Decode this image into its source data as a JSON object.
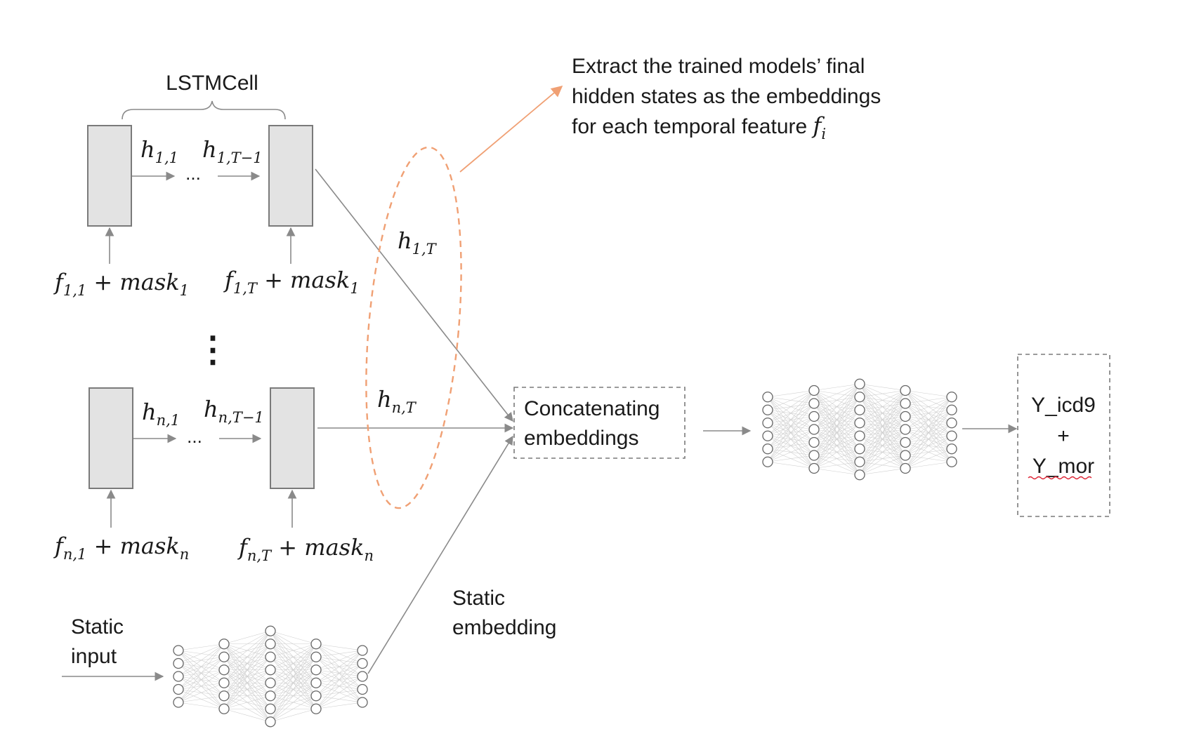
{
  "lstm_label": "LSTMCell",
  "callout": {
    "line1": "Extract the trained models’ final",
    "line2": "hidden states as the embeddings",
    "line3_text": "for each temporal feature ",
    "line3_f": "f",
    "line3_sub": "i"
  },
  "row1": {
    "h_first": {
      "base": "h",
      "sub": "1,1"
    },
    "h_mid": {
      "base": "h",
      "sub": "1,T−1"
    },
    "ellipsis": "...",
    "h_last": {
      "base": "h",
      "sub": "1,T"
    },
    "in_first": {
      "f": "f",
      "fsub": "1,1",
      "op": " + ",
      "mask": "mask",
      "msub": "1"
    },
    "in_last": {
      "f": "f",
      "fsub": "1,T",
      "op": " + ",
      "mask": "mask",
      "msub": "1"
    }
  },
  "vertical_dots": "⋮",
  "rowN": {
    "h_first": {
      "base": "h",
      "sub": "n,1"
    },
    "h_mid": {
      "base": "h",
      "sub": "n,T−1"
    },
    "ellipsis": "...",
    "h_last": {
      "base": "h",
      "sub": "n,T"
    },
    "in_first": {
      "f": "f",
      "fsub": "n,1",
      "op": " + ",
      "mask": "mask",
      "msub": "n"
    },
    "in_last": {
      "f": "f",
      "fsub": "n,T",
      "op": " + ",
      "mask": "mask",
      "msub": "n"
    }
  },
  "concat_box": {
    "line1": "Concatenating",
    "line2": "embeddings"
  },
  "output_box": {
    "line1": "Y_icd9",
    "line2": "+",
    "line3": "Y_mor"
  },
  "static_input": {
    "line1": "Static",
    "line2": "input"
  },
  "static_embedding": {
    "line1": "Static",
    "line2": "embedding"
  },
  "colors": {
    "accent": "#f0a074",
    "cell_fill": "#e3e3e3",
    "line": "#8a8a8a",
    "spellcheck": "#d23"
  },
  "networks": {
    "static_layers": [
      5,
      6,
      8,
      6,
      5
    ],
    "main_layers": [
      6,
      7,
      8,
      7,
      6
    ]
  }
}
